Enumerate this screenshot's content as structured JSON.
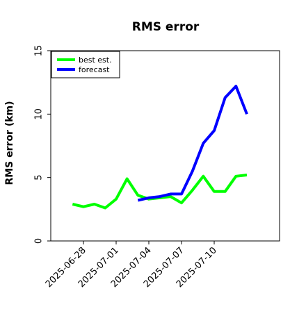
{
  "chart_data": {
    "type": "line",
    "title": "RMS error",
    "xlabel": "",
    "ylabel": "RMS error (km)",
    "ylim": [
      0,
      15
    ],
    "xlim": [
      "2025-06-25",
      "2025-07-16"
    ],
    "yticks": [
      0,
      5,
      10,
      15
    ],
    "xticks": [
      "2025-06-28",
      "2025-07-01",
      "2025-07-04",
      "2025-07-07",
      "2025-07-10"
    ],
    "grid": false,
    "legend_position": "top-left",
    "series": [
      {
        "name": "best est.",
        "color": "#00ff00",
        "points": [
          [
            "2025-06-27",
            2.9
          ],
          [
            "2025-06-28",
            2.7
          ],
          [
            "2025-06-29",
            2.9
          ],
          [
            "2025-06-30",
            2.6
          ],
          [
            "2025-07-01",
            3.3
          ],
          [
            "2025-07-02",
            4.9
          ],
          [
            "2025-07-03",
            3.6
          ],
          [
            "2025-07-04",
            3.3
          ],
          [
            "2025-07-05",
            3.4
          ],
          [
            "2025-07-06",
            3.5
          ],
          [
            "2025-07-07",
            3.0
          ],
          [
            "2025-07-08",
            4.0
          ],
          [
            "2025-07-09",
            5.1
          ],
          [
            "2025-07-10",
            3.9
          ],
          [
            "2025-07-11",
            3.9
          ],
          [
            "2025-07-12",
            5.1
          ],
          [
            "2025-07-13",
            5.2
          ]
        ]
      },
      {
        "name": "forecast",
        "color": "#0000ff",
        "points": [
          [
            "2025-07-03",
            3.2
          ],
          [
            "2025-07-04",
            3.4
          ],
          [
            "2025-07-05",
            3.5
          ],
          [
            "2025-07-06",
            3.7
          ],
          [
            "2025-07-07",
            3.7
          ],
          [
            "2025-07-08",
            5.5
          ],
          [
            "2025-07-09",
            7.7
          ],
          [
            "2025-07-10",
            8.7
          ],
          [
            "2025-07-11",
            11.3
          ],
          [
            "2025-07-12",
            12.2
          ],
          [
            "2025-07-13",
            10.0
          ]
        ]
      }
    ]
  }
}
